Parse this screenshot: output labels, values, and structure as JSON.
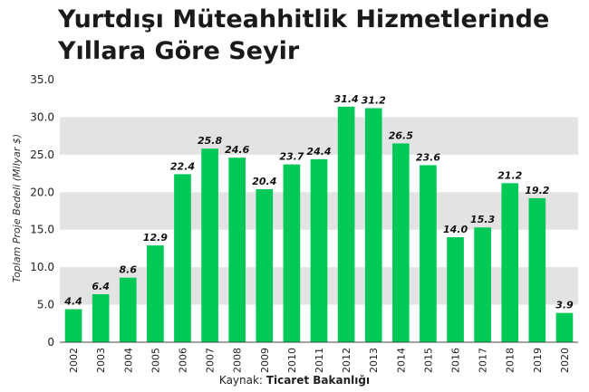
{
  "chart_data": {
    "type": "bar",
    "title_lines": [
      "Yurtdışı Müteahhitlik Hizmetlerinde",
      "Yıllara Göre Seyir"
    ],
    "ylabel": "Toplam Proje Bedeli (Milyar $)",
    "xlabel": "",
    "ylim": [
      0,
      35
    ],
    "yticks": [
      "0",
      "5.0",
      "10.0",
      "15.0",
      "20.0",
      "25.0",
      "30.0",
      "35.0"
    ],
    "categories": [
      "2002",
      "2003",
      "2004",
      "2005",
      "2006",
      "2007",
      "2008",
      "2009",
      "2010",
      "2011",
      "2012",
      "2013",
      "2014",
      "2015",
      "2016",
      "2017",
      "2018",
      "2019",
      "2020"
    ],
    "values": [
      4.4,
      6.4,
      8.6,
      12.9,
      22.4,
      25.8,
      24.6,
      20.4,
      23.7,
      24.4,
      31.4,
      31.2,
      26.5,
      23.6,
      14.0,
      15.3,
      21.2,
      19.2,
      3.9
    ],
    "value_labels": [
      "4.4",
      "6.4",
      "8.6",
      "12.9",
      "22.4",
      "25.8",
      "24.6",
      "20.4",
      "23.7",
      "24.4",
      "31.4",
      "31.2",
      "26.5",
      "23.6",
      "14.0",
      "15.3",
      "21.2",
      "19.2",
      "3.9"
    ],
    "grid": "alternating-bands",
    "bar_color": "#00c957",
    "band_color": "#e3e3e3"
  },
  "source": {
    "prefix": "Kaynak: ",
    "name": "Ticaret Bakanlığı"
  }
}
